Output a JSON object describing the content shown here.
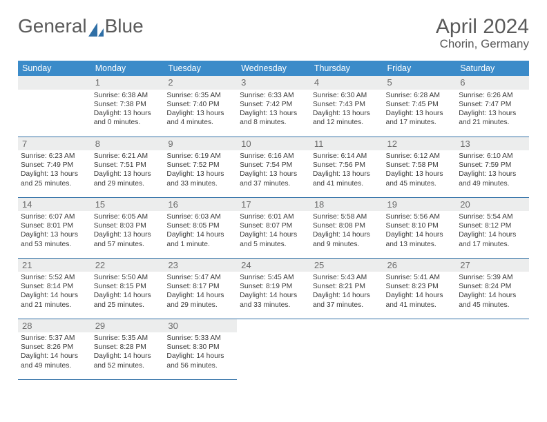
{
  "logo": {
    "text_left": "General",
    "text_right": "Blue",
    "sail_color": "#2f6fa6"
  },
  "title": "April 2024",
  "location": "Chorin, Germany",
  "header_bg": "#3b8bc9",
  "header_fg": "#ffffff",
  "daynum_bg": "#eceded",
  "rule_color": "#2f6fa6",
  "days_of_week": [
    "Sunday",
    "Monday",
    "Tuesday",
    "Wednesday",
    "Thursday",
    "Friday",
    "Saturday"
  ],
  "leading_blanks": 1,
  "days": [
    {
      "n": 1,
      "sr": "6:38 AM",
      "ss": "7:38 PM",
      "dh": 13,
      "dm": 0
    },
    {
      "n": 2,
      "sr": "6:35 AM",
      "ss": "7:40 PM",
      "dh": 13,
      "dm": 4
    },
    {
      "n": 3,
      "sr": "6:33 AM",
      "ss": "7:42 PM",
      "dh": 13,
      "dm": 8
    },
    {
      "n": 4,
      "sr": "6:30 AM",
      "ss": "7:43 PM",
      "dh": 13,
      "dm": 12
    },
    {
      "n": 5,
      "sr": "6:28 AM",
      "ss": "7:45 PM",
      "dh": 13,
      "dm": 17
    },
    {
      "n": 6,
      "sr": "6:26 AM",
      "ss": "7:47 PM",
      "dh": 13,
      "dm": 21
    },
    {
      "n": 7,
      "sr": "6:23 AM",
      "ss": "7:49 PM",
      "dh": 13,
      "dm": 25
    },
    {
      "n": 8,
      "sr": "6:21 AM",
      "ss": "7:51 PM",
      "dh": 13,
      "dm": 29
    },
    {
      "n": 9,
      "sr": "6:19 AM",
      "ss": "7:52 PM",
      "dh": 13,
      "dm": 33
    },
    {
      "n": 10,
      "sr": "6:16 AM",
      "ss": "7:54 PM",
      "dh": 13,
      "dm": 37
    },
    {
      "n": 11,
      "sr": "6:14 AM",
      "ss": "7:56 PM",
      "dh": 13,
      "dm": 41
    },
    {
      "n": 12,
      "sr": "6:12 AM",
      "ss": "7:58 PM",
      "dh": 13,
      "dm": 45
    },
    {
      "n": 13,
      "sr": "6:10 AM",
      "ss": "7:59 PM",
      "dh": 13,
      "dm": 49
    },
    {
      "n": 14,
      "sr": "6:07 AM",
      "ss": "8:01 PM",
      "dh": 13,
      "dm": 53
    },
    {
      "n": 15,
      "sr": "6:05 AM",
      "ss": "8:03 PM",
      "dh": 13,
      "dm": 57
    },
    {
      "n": 16,
      "sr": "6:03 AM",
      "ss": "8:05 PM",
      "dh": 14,
      "dm": 1
    },
    {
      "n": 17,
      "sr": "6:01 AM",
      "ss": "8:07 PM",
      "dh": 14,
      "dm": 5
    },
    {
      "n": 18,
      "sr": "5:58 AM",
      "ss": "8:08 PM",
      "dh": 14,
      "dm": 9
    },
    {
      "n": 19,
      "sr": "5:56 AM",
      "ss": "8:10 PM",
      "dh": 14,
      "dm": 13
    },
    {
      "n": 20,
      "sr": "5:54 AM",
      "ss": "8:12 PM",
      "dh": 14,
      "dm": 17
    },
    {
      "n": 21,
      "sr": "5:52 AM",
      "ss": "8:14 PM",
      "dh": 14,
      "dm": 21
    },
    {
      "n": 22,
      "sr": "5:50 AM",
      "ss": "8:15 PM",
      "dh": 14,
      "dm": 25
    },
    {
      "n": 23,
      "sr": "5:47 AM",
      "ss": "8:17 PM",
      "dh": 14,
      "dm": 29
    },
    {
      "n": 24,
      "sr": "5:45 AM",
      "ss": "8:19 PM",
      "dh": 14,
      "dm": 33
    },
    {
      "n": 25,
      "sr": "5:43 AM",
      "ss": "8:21 PM",
      "dh": 14,
      "dm": 37
    },
    {
      "n": 26,
      "sr": "5:41 AM",
      "ss": "8:23 PM",
      "dh": 14,
      "dm": 41
    },
    {
      "n": 27,
      "sr": "5:39 AM",
      "ss": "8:24 PM",
      "dh": 14,
      "dm": 45
    },
    {
      "n": 28,
      "sr": "5:37 AM",
      "ss": "8:26 PM",
      "dh": 14,
      "dm": 49
    },
    {
      "n": 29,
      "sr": "5:35 AM",
      "ss": "8:28 PM",
      "dh": 14,
      "dm": 52
    },
    {
      "n": 30,
      "sr": "5:33 AM",
      "ss": "8:30 PM",
      "dh": 14,
      "dm": 56
    }
  ]
}
